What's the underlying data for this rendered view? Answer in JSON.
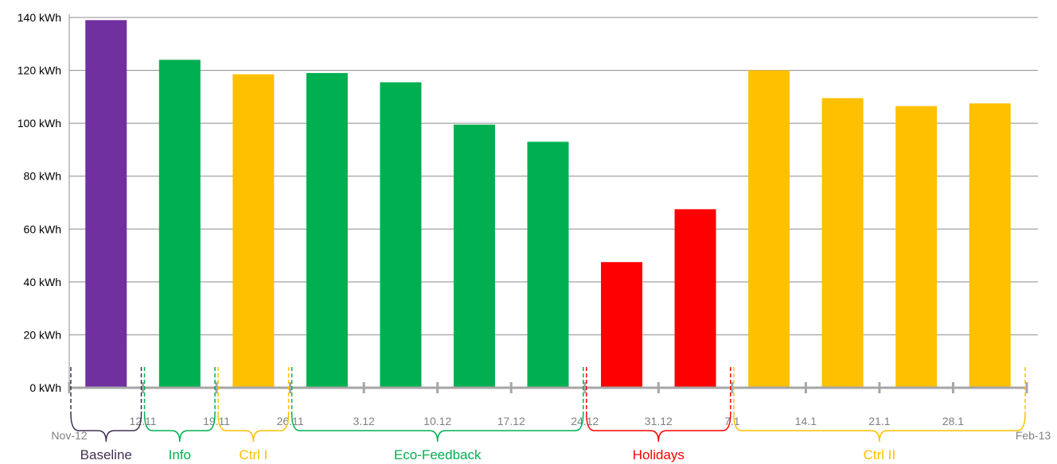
{
  "chart_data": {
    "type": "bar",
    "unit": "kWh",
    "ylim": [
      0,
      140
    ],
    "yticks": [
      0,
      20,
      40,
      60,
      80,
      100,
      120,
      140
    ],
    "ytick_labels": [
      "0 kWh",
      "20 kWh",
      "40 kWh",
      "60 kWh",
      "80 kWh",
      "100 kWh",
      "120 kWh",
      "140 kWh"
    ],
    "grid": true,
    "xtick_labels": [
      "12.11",
      "19.11",
      "26.11",
      "3.12",
      "10.12",
      "17.12",
      "24.12",
      "31.12",
      "7.1",
      "14.1",
      "21.1",
      "28.1"
    ],
    "start_label": "Nov-12",
    "end_label": "Feb-13",
    "values": [
      139,
      124,
      118.5,
      119,
      115.5,
      99.5,
      93,
      47.5,
      67.5,
      120,
      109.5,
      106.5,
      107.5
    ],
    "bar_phases": [
      "Baseline",
      "Info",
      "Ctrl I",
      "Eco-Feedback",
      "Eco-Feedback",
      "Eco-Feedback",
      "Eco-Feedback",
      "Holidays",
      "Holidays",
      "Ctrl II",
      "Ctrl II",
      "Ctrl II",
      "Ctrl II"
    ],
    "phases": [
      {
        "name": "Baseline",
        "color": "#403152",
        "bar_color": "#7030A0",
        "start": 0,
        "end": 1
      },
      {
        "name": "Info",
        "color": "#00B050",
        "bar_color": "#00B050",
        "start": 1,
        "end": 2
      },
      {
        "name": "Ctrl I",
        "color": "#FFC000",
        "bar_color": "#FFC000",
        "start": 2,
        "end": 3
      },
      {
        "name": "Eco-Feedback",
        "color": "#00B050",
        "bar_color": "#00B050",
        "start": 3,
        "end": 7
      },
      {
        "name": "Holidays",
        "color": "#FF0000",
        "bar_color": "#FF0000",
        "start": 7,
        "end": 9
      },
      {
        "name": "Ctrl II",
        "color": "#FFC000",
        "bar_color": "#FFC000",
        "start": 9,
        "end": 13
      }
    ]
  }
}
